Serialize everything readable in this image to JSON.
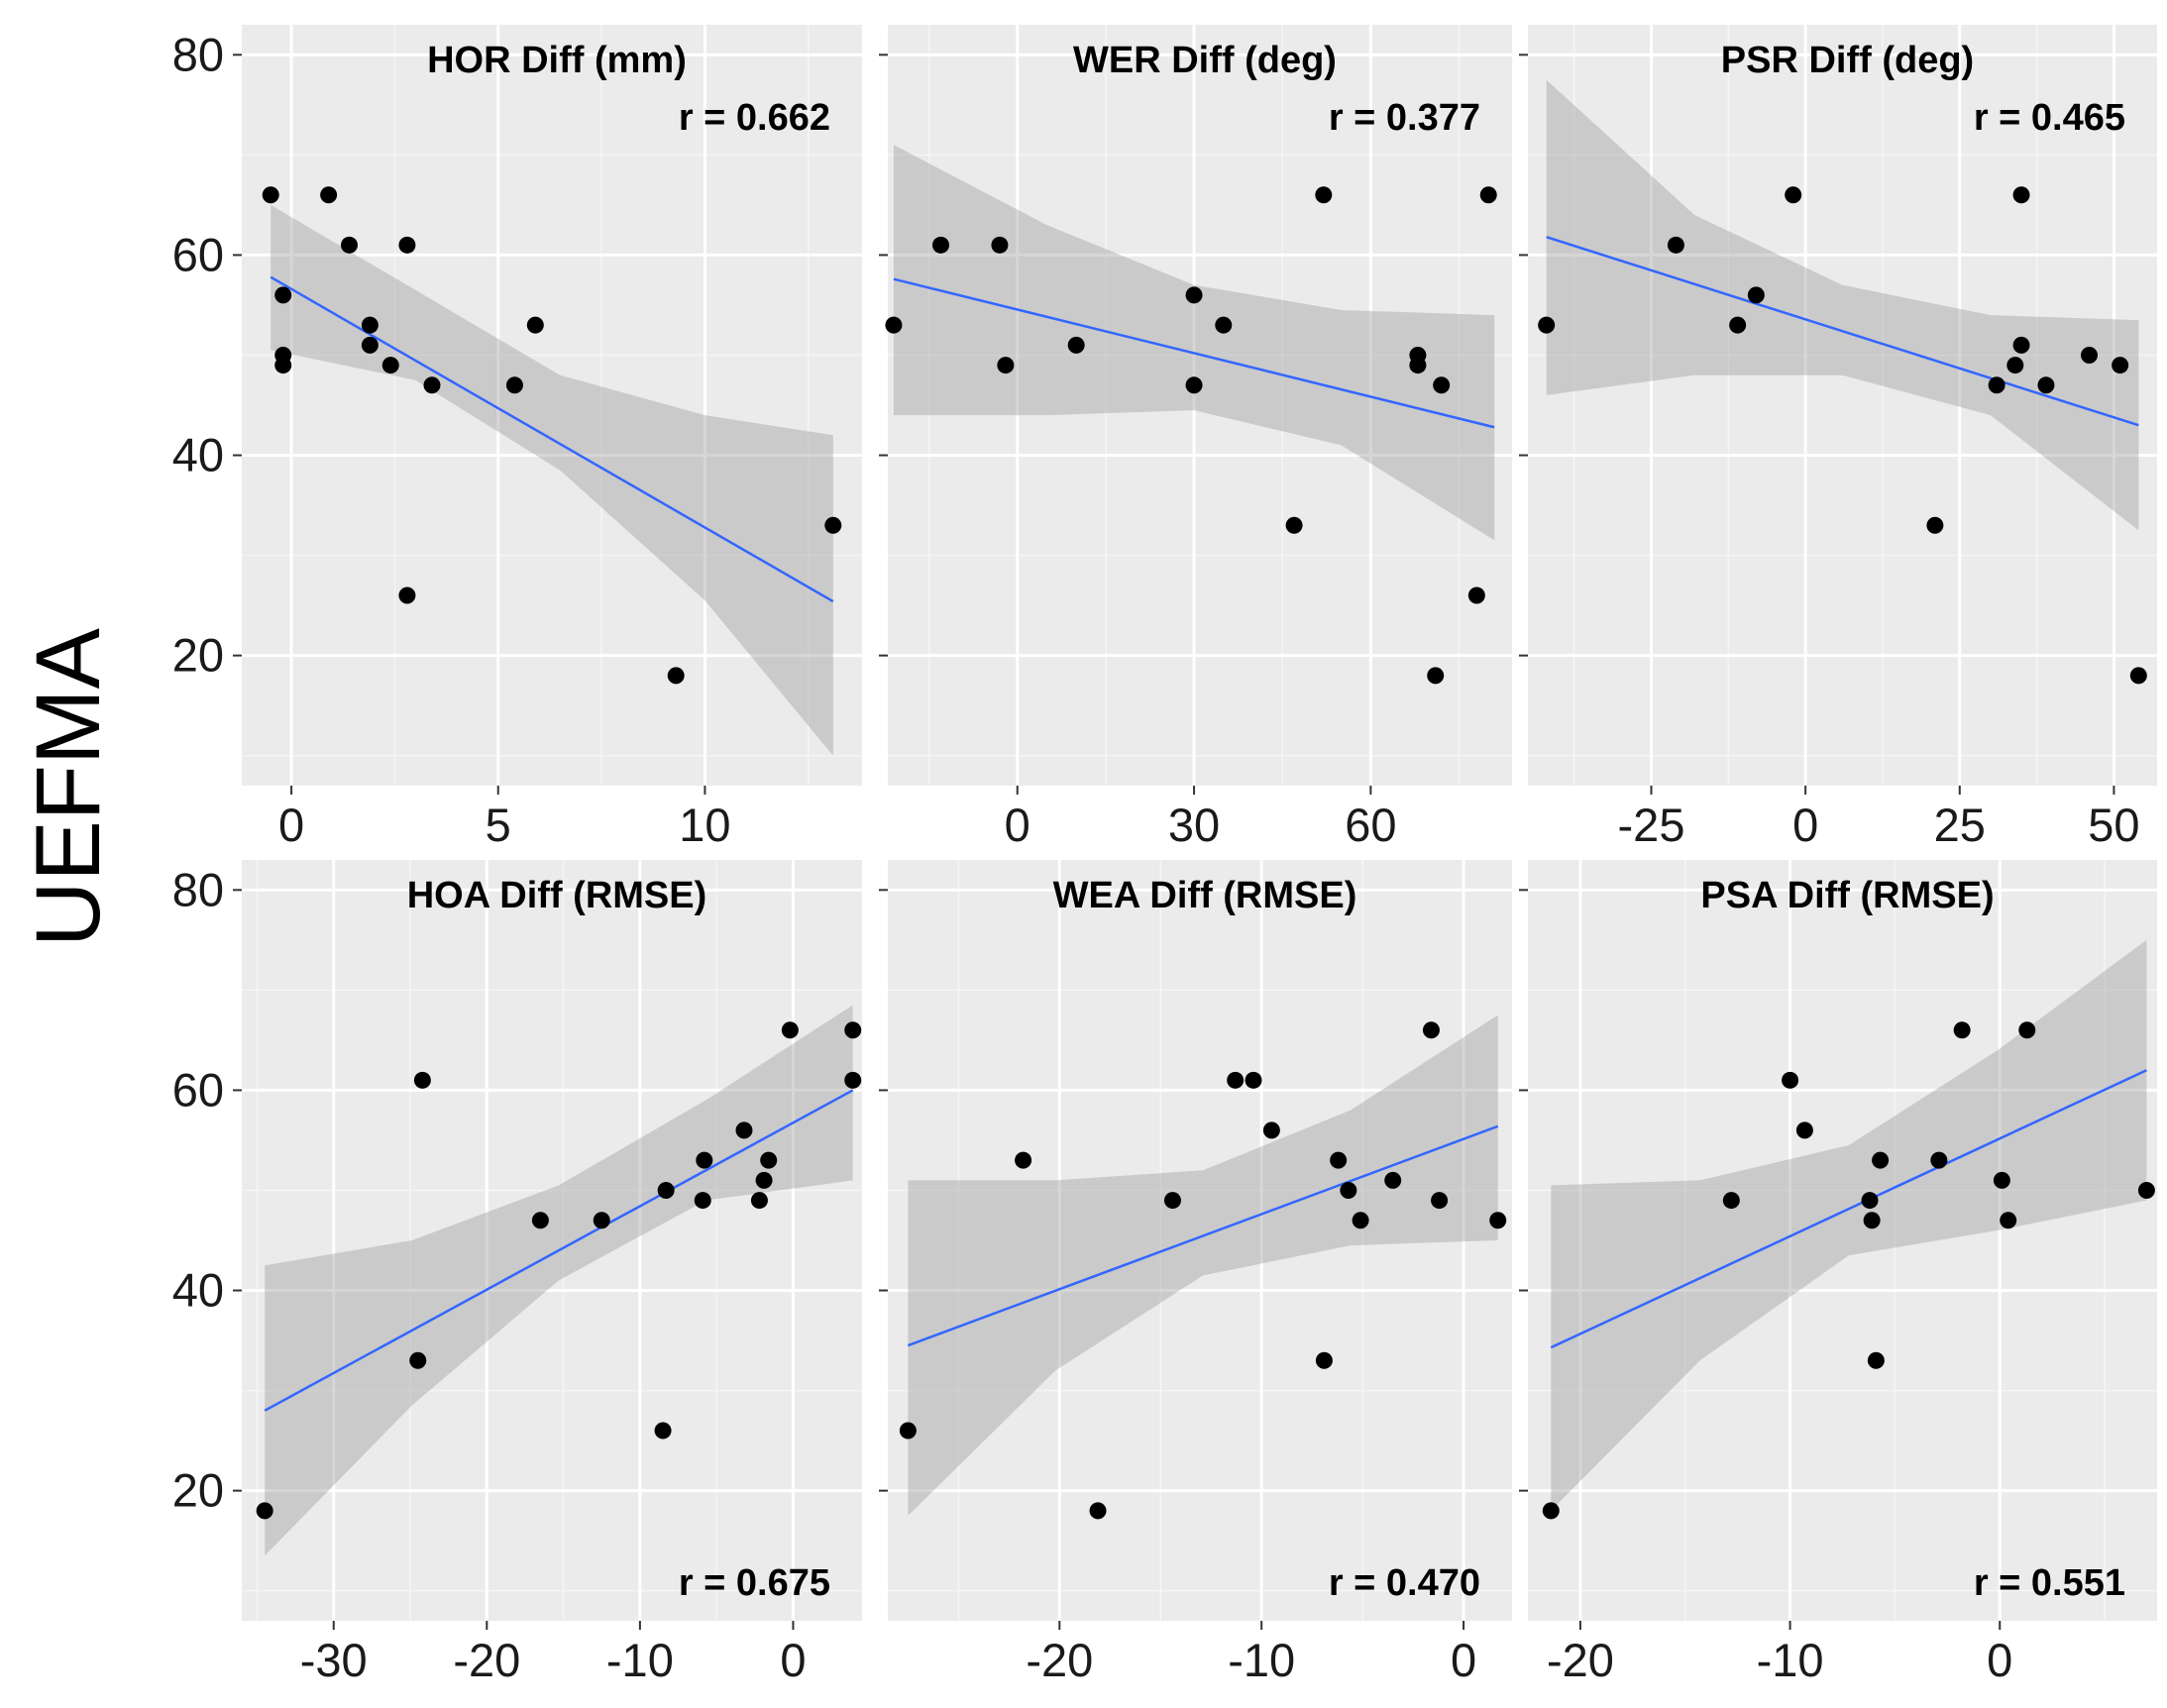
{
  "ylabel": "UEFMA",
  "chart_data": [
    {
      "type": "scatter",
      "title": "HOR Diff (mm)",
      "annotation": "r = 0.662",
      "xlim": [
        -1.2,
        13.8
      ],
      "ylim": [
        7,
        83
      ],
      "xticks": [
        0,
        5,
        10
      ],
      "yticks": [
        20,
        40,
        60,
        80
      ],
      "x": [
        -0.5,
        -0.2,
        -0.2,
        -0.2,
        0.9,
        1.4,
        1.9,
        1.9,
        2.4,
        2.8,
        2.8,
        3.4,
        5.4,
        5.9,
        9.3,
        13.1
      ],
      "y": [
        66,
        56,
        50,
        49,
        66,
        61,
        53,
        51,
        49,
        61,
        26,
        47,
        47,
        53,
        18,
        33
      ],
      "fit": {
        "x": [
          -0.5,
          13.1
        ],
        "y": [
          57.8,
          25.4
        ]
      },
      "band": {
        "x": [
          -0.5,
          3.0,
          6.5,
          10.0,
          13.1
        ],
        "lower": [
          50.5,
          47.5,
          38.5,
          25.5,
          10.0
        ],
        "upper": [
          65.0,
          56.5,
          48.0,
          44.0,
          42.0
        ]
      }
    },
    {
      "type": "scatter",
      "title": "WER Diff (deg)",
      "annotation": "r = 0.377",
      "xlim": [
        -22,
        84
      ],
      "ylim": [
        7,
        83
      ],
      "xticks": [
        0,
        30,
        60
      ],
      "yticks": [
        20,
        40,
        60,
        80
      ],
      "x": [
        -21,
        -13,
        -3,
        -2,
        10,
        30,
        30,
        35,
        47,
        52,
        68,
        68,
        71,
        72,
        78,
        80
      ],
      "y": [
        53,
        61,
        61,
        49,
        51,
        56,
        47,
        53,
        33,
        66,
        50,
        49,
        18,
        47,
        26,
        66
      ],
      "fit": {
        "x": [
          -21,
          81
        ],
        "y": [
          57.6,
          42.8
        ]
      },
      "band": {
        "x": [
          -21,
          5,
          30,
          55,
          81
        ],
        "lower": [
          44.0,
          44.0,
          44.5,
          41.0,
          31.5
        ],
        "upper": [
          71.0,
          63.0,
          57.0,
          54.5,
          54.0
        ]
      }
    },
    {
      "type": "scatter",
      "title": "PSR Diff (deg)",
      "annotation": "r = 0.465",
      "xlim": [
        -45,
        57
      ],
      "ylim": [
        7,
        83
      ],
      "xticks": [
        -25,
        0,
        25,
        50
      ],
      "yticks": [
        20,
        40,
        60,
        80
      ],
      "x": [
        -42,
        -21,
        -11,
        -8,
        -2,
        21,
        31,
        34,
        35,
        35,
        39,
        46,
        51,
        54
      ],
      "y": [
        53,
        61,
        53,
        56,
        66,
        33,
        47,
        49,
        51,
        66,
        47,
        50,
        49,
        18
      ],
      "fit": {
        "x": [
          -42,
          54
        ],
        "y": [
          61.8,
          43.0
        ]
      },
      "band": {
        "x": [
          -42,
          -18,
          6,
          30,
          54
        ],
        "lower": [
          46.0,
          48.0,
          48.0,
          44.0,
          32.5
        ],
        "upper": [
          77.5,
          64.0,
          57.0,
          54.0,
          53.5
        ]
      }
    },
    {
      "type": "scatter",
      "title": "HOA Diff (RMSE)",
      "annotation": "r = 0.675",
      "xlim": [
        -36,
        4.5
      ],
      "ylim": [
        7,
        83
      ],
      "xticks": [
        -30,
        -20,
        -10,
        0
      ],
      "yticks": [
        20,
        40,
        60,
        80
      ],
      "x": [
        -34.5,
        -24.5,
        -24.2,
        -16.5,
        -12.5,
        -8.5,
        -8.3,
        -5.9,
        -5.8,
        -3.2,
        -2.2,
        -1.9,
        -1.6,
        -0.2,
        3.9,
        3.9
      ],
      "y": [
        18,
        33,
        61,
        47,
        47,
        26,
        50,
        49,
        53,
        56,
        49,
        51,
        53,
        66,
        61,
        66
      ],
      "fit": {
        "x": [
          -34.5,
          3.9
        ],
        "y": [
          28.0,
          60.0
        ]
      },
      "band": {
        "x": [
          -34.5,
          -24.9,
          -15.3,
          -5.7,
          3.9
        ],
        "lower": [
          13.5,
          28.5,
          41.0,
          49.0,
          51.0
        ],
        "upper": [
          42.5,
          45.0,
          50.5,
          59.0,
          68.5
        ]
      }
    },
    {
      "type": "scatter",
      "title": "WEA Diff (RMSE)",
      "annotation": "r = 0.470",
      "xlim": [
        -28.5,
        2.4
      ],
      "ylim": [
        7,
        83
      ],
      "xticks": [
        -20,
        -10,
        0
      ],
      "yticks": [
        20,
        40,
        60,
        80
      ],
      "x": [
        -27.5,
        -21.8,
        -18.1,
        -14.4,
        -11.3,
        -10.4,
        -9.5,
        -6.9,
        -6.2,
        -5.7,
        -5.1,
        -3.5,
        -1.6,
        -1.2,
        1.7
      ],
      "y": [
        26,
        53,
        18,
        49,
        61,
        61,
        56,
        33,
        53,
        50,
        47,
        51,
        66,
        49,
        47
      ],
      "fit": {
        "x": [
          -27.5,
          1.7
        ],
        "y": [
          34.5,
          56.4
        ]
      },
      "band": {
        "x": [
          -27.5,
          -20.2,
          -12.9,
          -5.6,
          1.7
        ],
        "lower": [
          17.5,
          32.0,
          41.5,
          44.5,
          45.0
        ],
        "upper": [
          51.0,
          51.0,
          52.0,
          58.0,
          67.5
        ]
      }
    },
    {
      "type": "scatter",
      "title": "PSA Diff (RMSE)",
      "annotation": "r = 0.551",
      "xlim": [
        -22.5,
        7.5
      ],
      "ylim": [
        7,
        83
      ],
      "xticks": [
        -20,
        -10,
        0
      ],
      "yticks": [
        20,
        40,
        60,
        80
      ],
      "x": [
        -21.4,
        -12.8,
        -10.0,
        -9.3,
        -6.2,
        -6.1,
        -5.9,
        -5.7,
        -2.9,
        -1.8,
        0.1,
        0.4,
        1.3,
        7.0
      ],
      "y": [
        18,
        49,
        61,
        56,
        49,
        47,
        33,
        53,
        53,
        66,
        51,
        47,
        66,
        50
      ],
      "fit": {
        "x": [
          -21.4,
          7.0
        ],
        "y": [
          34.3,
          62.0
        ]
      },
      "band": {
        "x": [
          -21.4,
          -14.3,
          -7.2,
          -0.1,
          7.0
        ],
        "lower": [
          18.0,
          33.0,
          43.5,
          46.0,
          49.0
        ],
        "upper": [
          50.5,
          51.0,
          54.5,
          64.0,
          75.0
        ]
      }
    }
  ]
}
